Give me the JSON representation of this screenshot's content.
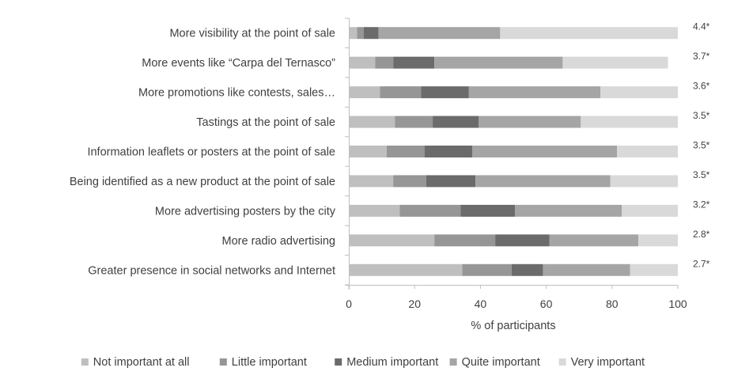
{
  "chart_data": {
    "type": "bar",
    "orientation": "horizontal",
    "stacked": true,
    "categories": [
      "More visibility at the point of sale",
      "More events like “Carpa del Ternasco”",
      "More promotions like contests, sales…",
      "Tastings at the point of sale",
      "Information leaflets or posters at the point of sale",
      "Being identified as a new product at the point of sale",
      "More advertising posters by the city",
      "More radio advertising",
      "Greater presence in social networks and Internet"
    ],
    "series": [
      {
        "name": "Not important at all",
        "color": "#bfbfbf",
        "values": [
          2.5,
          8,
          9.5,
          14,
          11.5,
          13.5,
          15.5,
          26,
          34.5
        ]
      },
      {
        "name": "Little important",
        "color": "#969696",
        "values": [
          2,
          5.5,
          12.5,
          11.5,
          11.5,
          10,
          18.5,
          18.5,
          15
        ]
      },
      {
        "name": "Medium important",
        "color": "#6b6b6b",
        "values": [
          4.5,
          12.5,
          14.5,
          14,
          14.5,
          15,
          16.5,
          16.5,
          9.5
        ]
      },
      {
        "name": "Quite important",
        "color": "#a5a5a5",
        "values": [
          37,
          39,
          40,
          31,
          44,
          41,
          32.5,
          27,
          26.5
        ]
      },
      {
        "name": "Very important",
        "color": "#d9d9d9",
        "values": [
          54,
          32,
          23.5,
          29.5,
          18.5,
          20.5,
          17,
          12,
          14.5
        ]
      }
    ],
    "scores": [
      "4.4*",
      "3.7*",
      "3.6*",
      "3.5*",
      "3.5*",
      "3.5*",
      "3.2*",
      "2.8*",
      "2.7*"
    ],
    "xlabel": "% of participants",
    "ylabel": "",
    "xlim": [
      0,
      100
    ],
    "xticks": [
      "0",
      "20",
      "40",
      "60",
      "80",
      "100"
    ],
    "grid": false,
    "legend_position": "bottom"
  }
}
